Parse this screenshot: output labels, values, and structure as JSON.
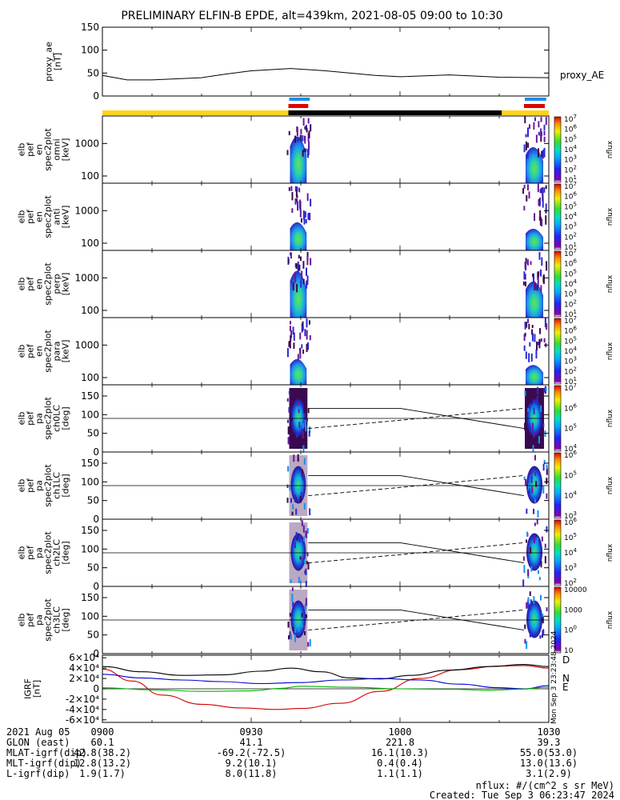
{
  "title": "PRELIMINARY ELFIN-B EPDE, alt=439km, 2021-08-05 09:00 to 10:30",
  "chart_data": [
    {
      "type": "line",
      "panel": "proxy_ae",
      "ylabel_lines": [
        "proxy_ae",
        "[nT]"
      ],
      "series_label": "proxy_AE",
      "ylim": [
        0,
        150
      ],
      "yticks": [
        "0",
        "50",
        "100",
        "150"
      ],
      "x_minutes": [
        0,
        5,
        10,
        20,
        25,
        30,
        38,
        45,
        55,
        60,
        70,
        80,
        90
      ],
      "values": [
        45,
        35,
        35,
        40,
        48,
        55,
        60,
        55,
        45,
        42,
        46,
        41,
        40
      ]
    },
    {
      "type": "heatmap",
      "panel": "spec-energy",
      "xlim_minutes": [
        0,
        90
      ],
      "passes": [
        [
          37.5,
          41.5
        ],
        [
          85.0,
          89.2
        ]
      ],
      "sub_panels": [
        {
          "ylabel_lines": [
            "elb",
            "pef",
            "en",
            "spec2plot",
            "omni",
            "[keV]"
          ],
          "yticks": [
            "100",
            "1000"
          ],
          "zunit": "nflux",
          "zticks": [
            "101",
            "102",
            "103",
            "104",
            "105",
            "106",
            "107"
          ]
        },
        {
          "ylabel_lines": [
            "elb",
            "pef",
            "en",
            "spec2plot",
            "anti",
            "[keV]"
          ],
          "yticks": [
            "100",
            "1000"
          ],
          "zunit": "nflux",
          "zticks": [
            "101",
            "102",
            "103",
            "104",
            "105",
            "106",
            "107"
          ]
        },
        {
          "ylabel_lines": [
            "elb",
            "pef",
            "en",
            "spec2plot",
            "perp",
            "[keV]"
          ],
          "yticks": [
            "100",
            "1000"
          ],
          "zunit": "nflux",
          "zticks": [
            "101",
            "102",
            "103",
            "104",
            "105",
            "106",
            "107"
          ]
        },
        {
          "ylabel_lines": [
            "elb",
            "pef",
            "en",
            "spec2plot",
            "para",
            "[keV]"
          ],
          "yticks": [
            "100",
            "1000"
          ],
          "zunit": "nflux",
          "zticks": [
            "101",
            "102",
            "103",
            "104",
            "105",
            "106",
            "107"
          ]
        }
      ]
    },
    {
      "type": "heatmap",
      "panel": "spec-pitch-angle",
      "ylim": [
        0,
        180
      ],
      "yticks": [
        "0",
        "50",
        "100",
        "150"
      ],
      "loss_cone_deg": 63,
      "anti_loss_cone_deg": 117,
      "sub_panels": [
        {
          "ylabel_lines": [
            "elb",
            "pef",
            "pa",
            "spec2plot",
            "ch0LC",
            "[deg]"
          ],
          "zunit": "nflux",
          "zticks": [
            "104",
            "105",
            "106",
            "107"
          ]
        },
        {
          "ylabel_lines": [
            "elb",
            "pef",
            "pa",
            "spec2plot",
            "ch1LC",
            "[deg]"
          ],
          "zunit": "nflux",
          "zticks": [
            "103",
            "104",
            "105",
            "106"
          ]
        },
        {
          "ylabel_lines": [
            "elb",
            "pef",
            "pa",
            "spec2plot",
            "ch2LC",
            "[deg]"
          ],
          "zunit": "nflux",
          "zticks": [
            "102",
            "103",
            "104",
            "105",
            "106"
          ]
        },
        {
          "ylabel_lines": [
            "elb",
            "pef",
            "pa",
            "spec2plot",
            "ch3LC",
            "[deg]"
          ],
          "zunit": "nflux",
          "zticks": [
            "10",
            "100",
            "1000",
            "10000"
          ]
        }
      ]
    },
    {
      "type": "line",
      "panel": "igrf",
      "ylabel_lines": [
        "IGRF",
        "[nT]"
      ],
      "ylim": [
        -65000,
        65000
      ],
      "yticks": [
        "-6×10⁴",
        "-4×10⁴",
        "-2×10⁴",
        "0",
        "2×10⁴",
        "4×10⁴",
        "6×10⁴"
      ],
      "legend": [
        "D",
        "N",
        "E"
      ],
      "series": [
        {
          "color": "#d00000",
          "x_minutes": [
            0,
            6,
            12,
            20,
            28,
            35,
            40,
            48,
            56,
            64,
            72,
            80,
            85,
            90
          ],
          "values": [
            38000,
            15000,
            -12000,
            -30000,
            -37000,
            -40000,
            -38000,
            -28000,
            -5000,
            20000,
            37000,
            44000,
            45000,
            40000
          ]
        },
        {
          "color": "#000000",
          "x_minutes": [
            0,
            8,
            16,
            24,
            32,
            38,
            44,
            50,
            56,
            62,
            70,
            78,
            85,
            90
          ],
          "values": [
            43000,
            33000,
            26000,
            27000,
            34000,
            40000,
            33000,
            21000,
            19000,
            26000,
            36000,
            43000,
            47000,
            43000
          ]
        },
        {
          "color": "#0000d0",
          "x_minutes": [
            0,
            8,
            16,
            24,
            32,
            40,
            48,
            56,
            64,
            72,
            80,
            85,
            90
          ],
          "values": [
            28000,
            21000,
            17000,
            14000,
            10000,
            12000,
            17000,
            20000,
            17000,
            9000,
            2000,
            0,
            6000
          ]
        },
        {
          "color": "#00b000",
          "x_minutes": [
            0,
            10,
            20,
            30,
            36,
            40,
            50,
            60,
            70,
            78,
            84,
            90
          ],
          "values": [
            2000,
            -2000,
            -5000,
            -4000,
            1000,
            5000,
            3000,
            0,
            -1000,
            -3000,
            -1000,
            3000
          ]
        }
      ]
    }
  ],
  "side_stamp": "Mon Sep  3 23:23:48 2024",
  "footer": {
    "times": [
      "0900",
      "0930",
      "1000",
      "1030"
    ],
    "date_label": "2021 Aug 05",
    "rows": [
      {
        "label": "GLON (east)",
        "values": [
          "60.1",
          "41.1",
          "221.8",
          "39.3"
        ]
      },
      {
        "label": "MLAT-igrf(dip)",
        "values": [
          "42.8(38.2)",
          "-69.2(-72.5)",
          "16.1(10.3)",
          "55.0(53.0)"
        ]
      },
      {
        "label": "MLT-igrf(dip)",
        "values": [
          "12.8(13.2)",
          "9.2(10.1)",
          "0.4(0.4)",
          "13.0(13.6)"
        ]
      },
      {
        "label": "L-igrf(dip)",
        "values": [
          "1.9(1.7)",
          "8.0(11.8)",
          "1.1(1.1)",
          "3.1(2.9)"
        ]
      }
    ],
    "unit_note": "nflux: #/(cm^2 s sr MeV)",
    "created": "Created: Tue Sep  3 06:23:47 2024"
  }
}
